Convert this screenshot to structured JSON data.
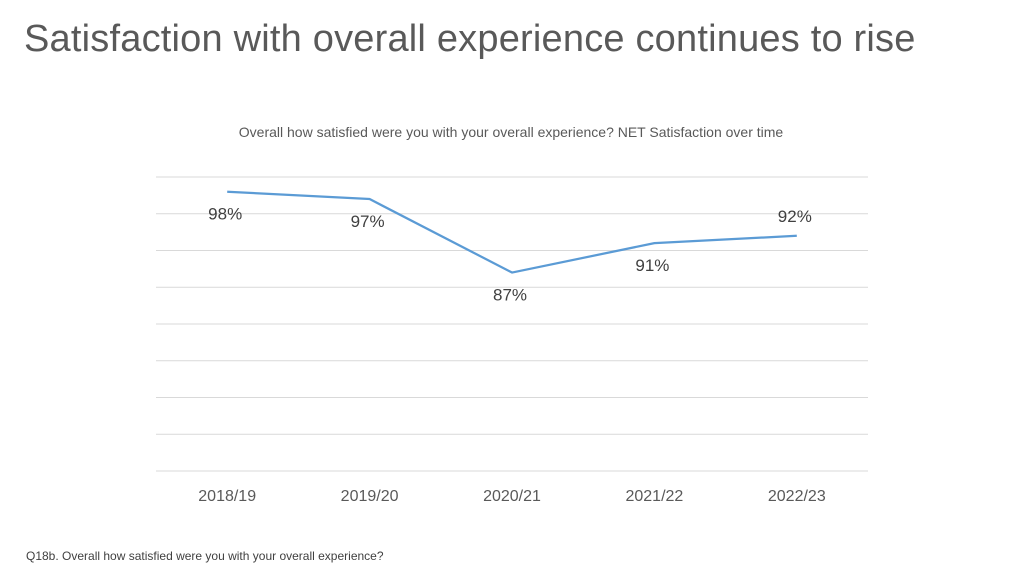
{
  "slide_title": "Satisfaction with overall experience continues to rise",
  "footnote": "Q18b. Overall how satisfied were you with your overall experience?",
  "colors": {
    "line": "#5B9BD5",
    "grid": "#D9D9D9",
    "text": "#595959"
  },
  "chart_data": {
    "type": "line",
    "title": "Overall how satisfied were you with your overall experience? NET Satisfaction over time",
    "categories": [
      "2018/19",
      "2019/20",
      "2020/21",
      "2021/22",
      "2022/23"
    ],
    "series": [
      {
        "name": "NET Satisfaction",
        "values": [
          98,
          97,
          87,
          91,
          92
        ]
      }
    ],
    "data_labels": [
      "98%",
      "97%",
      "87%",
      "91%",
      "92%"
    ],
    "ylim": [
      60,
      100
    ],
    "gridlines": true,
    "xlabel": "",
    "ylabel": ""
  }
}
